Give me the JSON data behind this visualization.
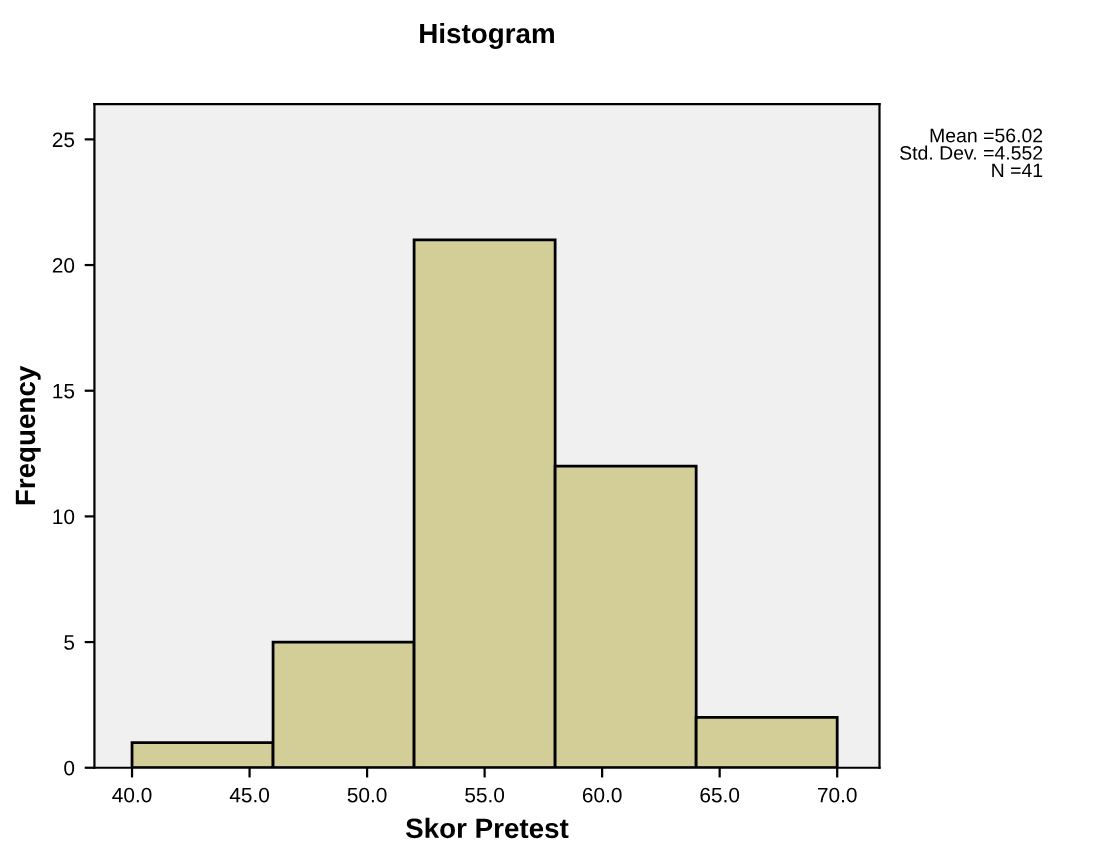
{
  "chart_data": {
    "type": "histogram",
    "title": "Histogram",
    "xlabel": "Skor Pretest",
    "ylabel": "Frequency",
    "bins": [
      40,
      46,
      52,
      58,
      64,
      70
    ],
    "values": [
      1,
      5,
      21,
      12,
      2
    ],
    "color": "#d3ce97",
    "xlim": [
      38.4,
      71.8
    ],
    "ylim": [
      0,
      26.4
    ],
    "xticks": [
      {
        "value": 40,
        "label": "40.0"
      },
      {
        "value": 45,
        "label": "45.0"
      },
      {
        "value": 50,
        "label": "50.0"
      },
      {
        "value": 55,
        "label": "55.0"
      },
      {
        "value": 60,
        "label": "60.0"
      },
      {
        "value": 65,
        "label": "65.0"
      },
      {
        "value": 70,
        "label": "70.0"
      }
    ],
    "yticks": [
      0,
      5,
      10,
      15,
      20,
      25
    ],
    "annotations": [
      "Mean =56.02\nStd. Dev. =4.552\nN =41"
    ],
    "grid": false
  }
}
